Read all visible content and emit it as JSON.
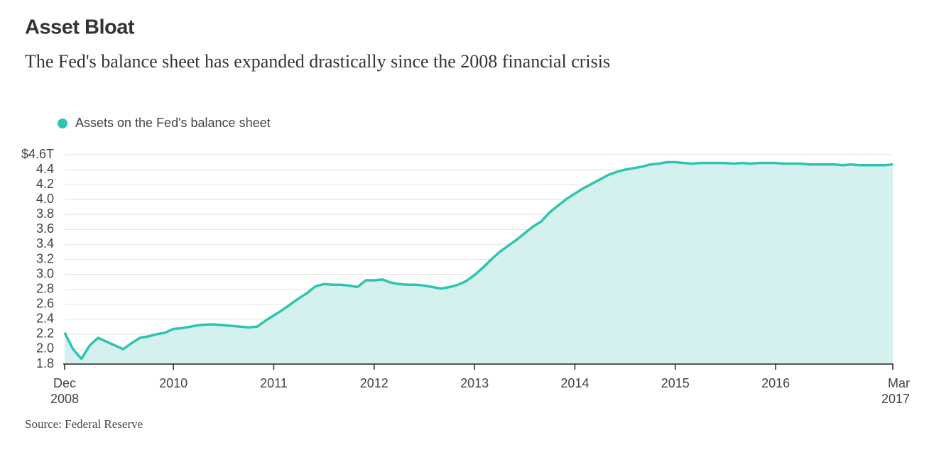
{
  "chart_data": {
    "type": "area",
    "title": "Asset Bloat",
    "subtitle": "The Fed's balance sheet has expanded drastically since the 2008 financial crisis",
    "source": "Source: Federal Reserve",
    "color": "#2fc4b2",
    "fill": "#d4f1ef",
    "grid": true,
    "x": [
      "2008-12",
      "2009-01",
      "2009-02",
      "2009-03",
      "2009-04",
      "2009-05",
      "2009-06",
      "2009-07",
      "2009-08",
      "2009-09",
      "2009-10",
      "2009-11",
      "2009-12",
      "2010-01",
      "2010-02",
      "2010-03",
      "2010-04",
      "2010-05",
      "2010-06",
      "2010-07",
      "2010-08",
      "2010-09",
      "2010-10",
      "2010-11",
      "2010-12",
      "2011-01",
      "2011-02",
      "2011-03",
      "2011-04",
      "2011-05",
      "2011-06",
      "2011-07",
      "2011-08",
      "2011-09",
      "2011-10",
      "2011-11",
      "2011-12",
      "2012-01",
      "2012-02",
      "2012-03",
      "2012-04",
      "2012-05",
      "2012-06",
      "2012-07",
      "2012-08",
      "2012-09",
      "2012-10",
      "2012-11",
      "2012-12",
      "2013-01",
      "2013-02",
      "2013-03",
      "2013-04",
      "2013-05",
      "2013-06",
      "2013-07",
      "2013-08",
      "2013-09",
      "2013-10",
      "2013-11",
      "2013-12",
      "2014-01",
      "2014-02",
      "2014-03",
      "2014-04",
      "2014-05",
      "2014-06",
      "2014-07",
      "2014-08",
      "2014-09",
      "2014-10",
      "2014-11",
      "2014-12",
      "2015-01",
      "2015-02",
      "2015-03",
      "2015-04",
      "2015-05",
      "2015-06",
      "2015-07",
      "2015-08",
      "2015-09",
      "2015-10",
      "2015-11",
      "2015-12",
      "2016-01",
      "2016-02",
      "2016-03",
      "2016-04",
      "2016-05",
      "2016-06",
      "2016-07",
      "2016-08",
      "2016-09",
      "2016-10",
      "2016-11",
      "2016-12",
      "2017-01",
      "2017-02",
      "2017-03"
    ],
    "series": [
      {
        "name": "Assets on the Fed's balance sheet",
        "color": "#2fc4b2",
        "values": [
          2.22,
          2.0,
          1.87,
          2.05,
          2.15,
          2.1,
          2.05,
          2.0,
          2.08,
          2.15,
          2.17,
          2.2,
          2.22,
          2.27,
          2.28,
          2.3,
          2.32,
          2.33,
          2.33,
          2.32,
          2.31,
          2.3,
          2.29,
          2.3,
          2.38,
          2.45,
          2.52,
          2.6,
          2.68,
          2.75,
          2.84,
          2.87,
          2.86,
          2.86,
          2.85,
          2.83,
          2.92,
          2.92,
          2.93,
          2.89,
          2.87,
          2.86,
          2.86,
          2.85,
          2.83,
          2.81,
          2.83,
          2.86,
          2.91,
          2.99,
          3.09,
          3.2,
          3.3,
          3.38,
          3.46,
          3.55,
          3.64,
          3.71,
          3.83,
          3.92,
          4.01,
          4.08,
          4.15,
          4.21,
          4.27,
          4.33,
          4.37,
          4.4,
          4.42,
          4.44,
          4.47,
          4.48,
          4.5,
          4.5,
          4.49,
          4.48,
          4.49,
          4.49,
          4.49,
          4.49,
          4.48,
          4.49,
          4.48,
          4.49,
          4.49,
          4.49,
          4.48,
          4.48,
          4.48,
          4.47,
          4.47,
          4.47,
          4.47,
          4.46,
          4.47,
          4.46,
          4.46,
          4.46,
          4.46,
          4.47
        ]
      }
    ],
    "xlim": [
      "2008-12",
      "2017-03"
    ],
    "xticks": [
      {
        "value": "2008-12",
        "label": "Dec 2008"
      },
      {
        "value": "2010-01",
        "label": "2010"
      },
      {
        "value": "2011-01",
        "label": "2011"
      },
      {
        "value": "2012-01",
        "label": "2012"
      },
      {
        "value": "2013-01",
        "label": "2013"
      },
      {
        "value": "2014-01",
        "label": "2014"
      },
      {
        "value": "2015-01",
        "label": "2015"
      },
      {
        "value": "2016-01",
        "label": "2016"
      },
      {
        "value": "2017-03",
        "label": "Mar 2017"
      }
    ],
    "ylim": [
      1.8,
      4.6
    ],
    "yticks": [
      {
        "value": 1.8,
        "label": "1.8"
      },
      {
        "value": 2.0,
        "label": "2.0"
      },
      {
        "value": 2.2,
        "label": "2.2"
      },
      {
        "value": 2.4,
        "label": "2.4"
      },
      {
        "value": 2.6,
        "label": "2.6"
      },
      {
        "value": 2.8,
        "label": "2.8"
      },
      {
        "value": 3.0,
        "label": "3.0"
      },
      {
        "value": 3.2,
        "label": "3.2"
      },
      {
        "value": 3.4,
        "label": "3.4"
      },
      {
        "value": 3.6,
        "label": "3.6"
      },
      {
        "value": 3.8,
        "label": "3.8"
      },
      {
        "value": 4.0,
        "label": "4.0"
      },
      {
        "value": 4.2,
        "label": "4.2"
      },
      {
        "value": 4.4,
        "label": "4.4"
      },
      {
        "value": 4.6,
        "label": "$4.6T"
      }
    ]
  }
}
